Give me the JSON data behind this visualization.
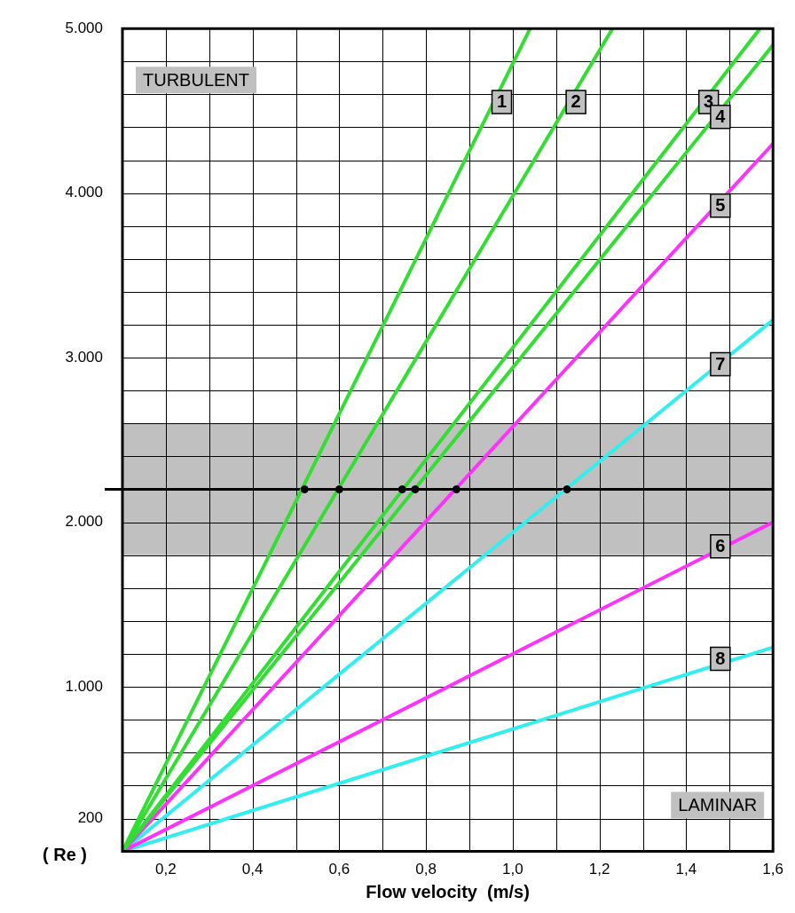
{
  "chart_data": {
    "type": "line",
    "xlabel": "Flow velocity  (m/s)",
    "ylabel": "( Re )",
    "xlim": [
      0.1,
      1.6
    ],
    "ylim": [
      0,
      5000
    ],
    "xticks": [
      {
        "value": 0.2,
        "label": "0,2"
      },
      {
        "value": 0.3,
        "label": null
      },
      {
        "value": 0.4,
        "label": "0,4"
      },
      {
        "value": 0.5,
        "label": null
      },
      {
        "value": 0.6,
        "label": "0,6"
      },
      {
        "value": 0.7,
        "label": null
      },
      {
        "value": 0.8,
        "label": "0,8"
      },
      {
        "value": 0.9,
        "label": null
      },
      {
        "value": 1.0,
        "label": "1,0"
      },
      {
        "value": 1.1,
        "label": null
      },
      {
        "value": 1.2,
        "label": "1,2"
      },
      {
        "value": 1.3,
        "label": null
      },
      {
        "value": 1.4,
        "label": "1,4"
      },
      {
        "value": 1.5,
        "label": null
      },
      {
        "value": 1.6,
        "label": "1,6"
      }
    ],
    "yticks": [
      200,
      {
        "value": 400,
        "label": null
      },
      {
        "value": 600,
        "label": null
      },
      {
        "value": 800,
        "label": null
      },
      {
        "value": 1000,
        "label": "1.000"
      },
      {
        "value": 1200,
        "label": null
      },
      {
        "value": 1400,
        "label": null
      },
      {
        "value": 1600,
        "label": null
      },
      {
        "value": 1800,
        "label": null
      },
      {
        "value": 2000,
        "label": "2.000"
      },
      {
        "value": 2200,
        "label": null
      },
      {
        "value": 2400,
        "label": null
      },
      {
        "value": 2600,
        "label": null
      },
      {
        "value": 2800,
        "label": null
      },
      {
        "value": 3000,
        "label": "3.000"
      },
      {
        "value": 3200,
        "label": null
      },
      {
        "value": 3400,
        "label": null
      },
      {
        "value": 3600,
        "label": null
      },
      {
        "value": 3800,
        "label": null
      },
      {
        "value": 4000,
        "label": "4.000"
      },
      {
        "value": 4200,
        "label": null
      },
      {
        "value": 4400,
        "label": null
      },
      {
        "value": 4600,
        "label": null
      },
      {
        "value": 4800,
        "label": null
      },
      {
        "value": 5000,
        "label": "5.000"
      }
    ],
    "grid": true,
    "legend": false,
    "marker": "none",
    "line_style": "solid",
    "bands": [
      {
        "axis": "y",
        "from": 1800,
        "to": 2600,
        "color": "#c0c0c0"
      }
    ],
    "ref_lines": [
      {
        "axis": "y",
        "value": 2200,
        "color": "#000000"
      }
    ],
    "annotations": [
      "TURBULENT",
      "LAMINAR"
    ],
    "series": [
      {
        "name": "1",
        "color": "#33dd33",
        "x": [
          0.1,
          1.04
        ],
        "values": [
          0,
          5000
        ]
      },
      {
        "name": "2",
        "color": "#33dd33",
        "x": [
          0.1,
          1.23
        ],
        "values": [
          0,
          5000
        ]
      },
      {
        "name": "3",
        "color": "#33dd33",
        "x": [
          0.1,
          1.57
        ],
        "values": [
          0,
          5000
        ]
      },
      {
        "name": "4",
        "color": "#33dd33",
        "x": [
          0.1,
          1.6
        ],
        "values": [
          0,
          4900
        ]
      },
      {
        "name": "5",
        "color": "#ff33ff",
        "x": [
          0.1,
          1.6
        ],
        "values": [
          0,
          4300
        ]
      },
      {
        "name": "6",
        "color": "#ff33ff",
        "x": [
          0.1,
          1.6
        ],
        "values": [
          0,
          2000
        ]
      },
      {
        "name": "7",
        "color": "#33eeee",
        "x": [
          0.1,
          1.6
        ],
        "values": [
          0,
          3230
        ]
      },
      {
        "name": "8",
        "color": "#33eeee",
        "x": [
          0.1,
          1.6
        ],
        "values": [
          0,
          1240
        ]
      },
      {
        "type": "scatter",
        "color": "#000000",
        "marker": "circle",
        "x": [
          0.52,
          0.6,
          0.745,
          0.775,
          0.87,
          1.125
        ],
        "values": [
          2200,
          2200,
          2200,
          2200,
          2200,
          2200
        ]
      }
    ]
  }
}
